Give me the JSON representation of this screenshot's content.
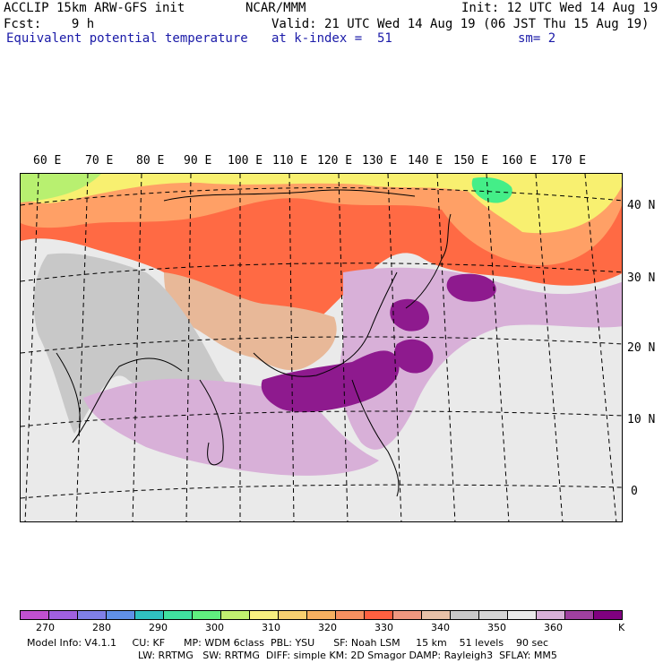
{
  "header": {
    "line1_left": "ACCLIP 15km ARW-GFS init",
    "line1_center": "NCAR/MMM",
    "line1_right": "Init: 12 UTC Wed 14 Aug 19",
    "line2_left": "Fcst:    9 h",
    "line2_right": "Valid: 21 UTC Wed 14 Aug 19 (06 JST Thu 15 Aug 19)",
    "line3_left": "Equivalent potential temperature",
    "line3_center": "at k-index =  51",
    "line3_right": "sm= 2"
  },
  "map": {
    "lon_labels": [
      "60 E",
      "70 E",
      "80 E",
      "90 E",
      "100 E",
      "110 E",
      "120 E",
      "130 E",
      "140 E",
      "150 E",
      "160 E",
      "170 E"
    ],
    "lat_labels": [
      "40 N",
      "30 N",
      "20 N",
      "10 N",
      "0"
    ],
    "palette": {
      "purple_dark": "#8e1a8e",
      "purple_light": "#d8b0d8",
      "gray_light": "#eaeaea",
      "gray_mid": "#c8c8c8",
      "tan": "#e8b898",
      "orange": "#ff9966",
      "red": "#ff5533",
      "yellow": "#f8f870",
      "green": "#44ee88"
    }
  },
  "colorbar": {
    "colors": [
      "#c050d0",
      "#a060e0",
      "#8080e8",
      "#6090e8",
      "#30c0c0",
      "#40e0a0",
      "#60f080",
      "#c0f070",
      "#f8f080",
      "#f8d070",
      "#f8b060",
      "#f89060",
      "#ff6040",
      "#f09880",
      "#e8c0a8",
      "#c8c8c8",
      "#d4d4d4",
      "#eaeaea",
      "#d8b0d8",
      "#a040a0",
      "#800080"
    ],
    "ticks": [
      "270",
      "280",
      "290",
      "300",
      "310",
      "320",
      "330",
      "340",
      "350",
      "360"
    ],
    "unit": "K"
  },
  "footer": {
    "line1": "Model Info: V4.1.1     CU: KF      MP: WDM 6class  PBL: YSU      SF: Noah LSM     15 km    51 levels    90 sec",
    "line2": "LW: RRTMG   SW: RRTMG  DIFF: simple KM: 2D Smagor DAMP: Rayleigh3  SFLAY: MM5"
  }
}
